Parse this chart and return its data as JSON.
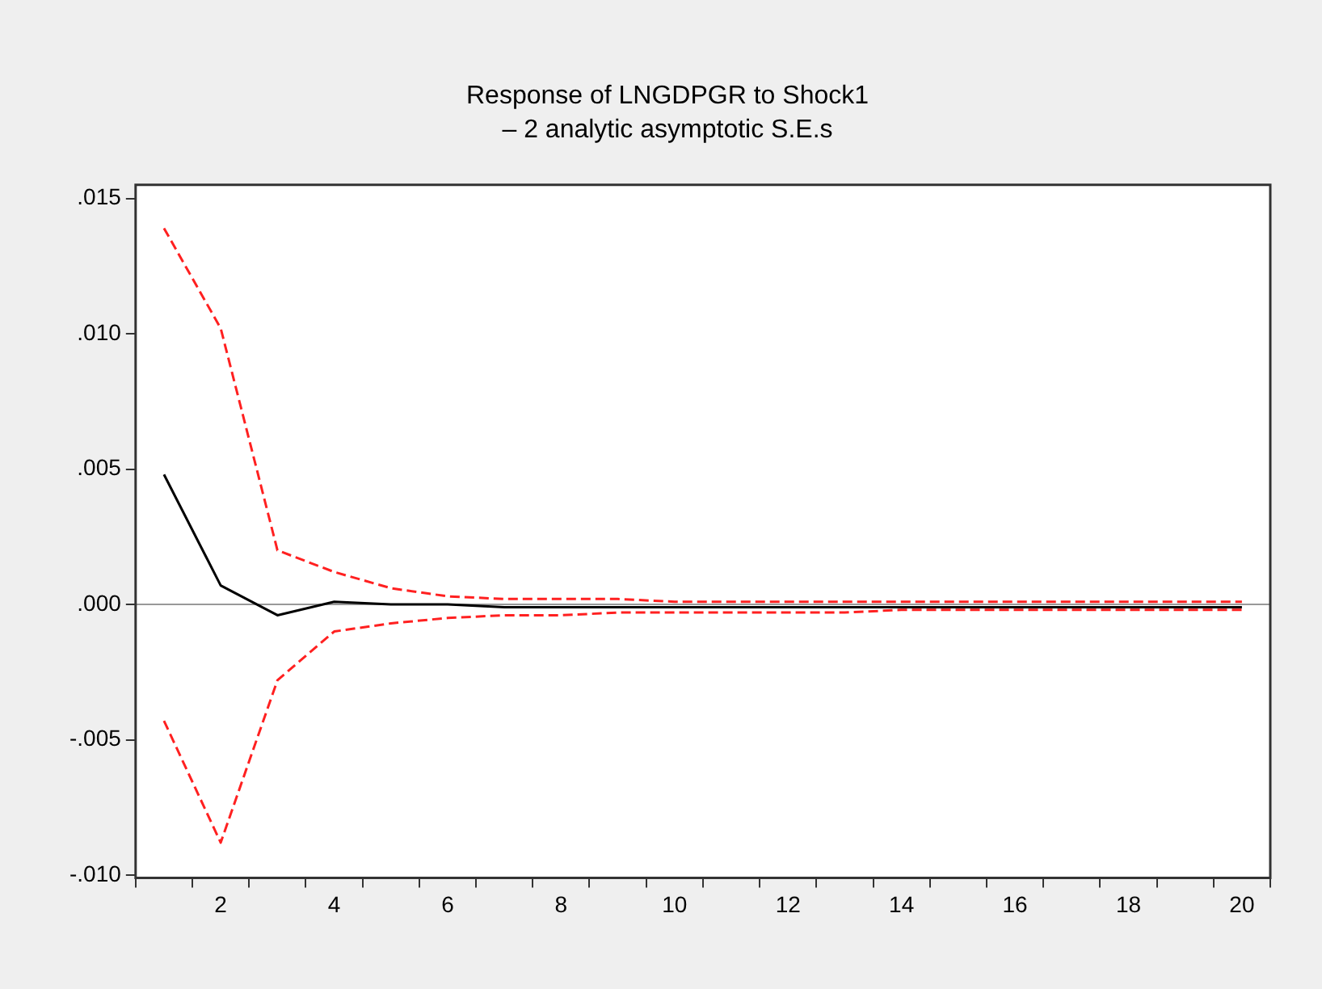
{
  "chart_data": {
    "type": "line",
    "title": "Response of LNGDPGR to Shock1",
    "subtitle": "– 2 analytic asymptotic S.E.s",
    "categories": [
      null,
      "2",
      null,
      "4",
      null,
      "6",
      null,
      "8",
      null,
      "10",
      null,
      "12",
      null,
      "14",
      null,
      "16",
      null,
      "18",
      null,
      "20"
    ],
    "series": [
      {
        "color": "#000000",
        "line_style": "solid",
        "values": [
          0.0048,
          0.0007,
          -0.0004,
          0.0001,
          0.0,
          0.0,
          -0.0001,
          -0.0001,
          -0.0001,
          -0.0001,
          -0.0001,
          -0.0001,
          -0.0001,
          -0.0001,
          -0.0001,
          -0.0001,
          -0.0001,
          -0.0001,
          -0.0001,
          -0.0001
        ]
      },
      {
        "color": "#ff2020",
        "line_style": "dashed",
        "values": [
          0.0139,
          0.0102,
          0.002,
          0.0012,
          0.0006,
          0.0003,
          0.0002,
          0.0002,
          0.0002,
          0.0001,
          0.0001,
          0.0001,
          0.0001,
          0.0001,
          0.0001,
          0.0001,
          0.0001,
          0.0001,
          0.0001,
          0.0001
        ]
      },
      {
        "color": "#ff2020",
        "line_style": "dashed",
        "values": [
          -0.0043,
          -0.0088,
          -0.0028,
          -0.001,
          -0.0007,
          -0.0005,
          -0.0004,
          -0.0004,
          -0.0003,
          -0.0003,
          -0.0003,
          -0.0003,
          -0.0003,
          -0.0002,
          -0.0002,
          -0.0002,
          -0.0002,
          -0.0002,
          -0.0002,
          -0.0002
        ]
      }
    ],
    "ylim": [
      -0.0101,
      0.0155
    ],
    "yticks": [
      {
        "value": -0.01,
        "label": "-.010"
      },
      {
        "value": -0.005,
        "label": "-.005"
      },
      {
        "value": 0,
        "label": ".000"
      },
      {
        "value": 0.005,
        "label": ".005"
      },
      {
        "value": 0.01,
        "label": ".010"
      },
      {
        "value": 0.015,
        "label": ".015"
      }
    ],
    "ref_lines": [
      {
        "axis": "y",
        "value": 0,
        "color": "#999999"
      }
    ],
    "grid": false,
    "legend": false,
    "marker": "none"
  }
}
